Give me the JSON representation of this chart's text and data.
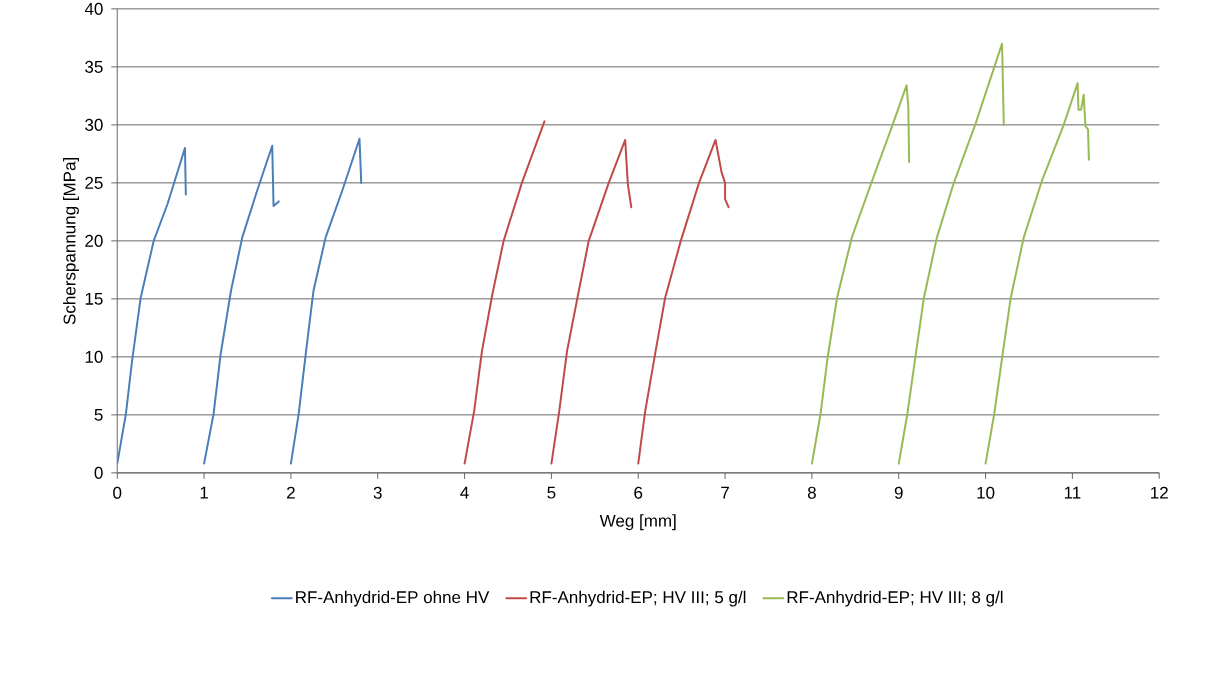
{
  "chart_data": {
    "type": "line",
    "xlabel": "Weg [mm]",
    "ylabel": "Scherspannung [MPa]",
    "xlim": [
      0,
      12
    ],
    "ylim": [
      0,
      40
    ],
    "xticks": [
      0,
      1,
      2,
      3,
      4,
      5,
      6,
      7,
      8,
      9,
      10,
      11,
      12
    ],
    "yticks": [
      0,
      5,
      10,
      15,
      20,
      25,
      30,
      35,
      40
    ],
    "grid": "y",
    "legend": "bottom",
    "series": [
      {
        "name": "RF-Anhydrid-EP ohne HV",
        "color": "#4a7ebb",
        "x": [
          0,
          0.1,
          0.17,
          0.27,
          0.42,
          0.58,
          0.78,
          0.79,
          0.9,
          1.0,
          1.11,
          1.19,
          1.31,
          1.44,
          1.61,
          1.785,
          1.8,
          1.86,
          1.9,
          2.0,
          2.09,
          2.17,
          2.26,
          2.4,
          2.59,
          2.79,
          2.81
        ],
        "values": [
          0.8,
          5.1,
          9.6,
          15.1,
          20,
          23.2,
          28,
          24,
          null,
          0.8,
          5.1,
          10.2,
          15.7,
          20.3,
          24.3,
          28.2,
          23,
          23.4,
          null,
          0.8,
          5.1,
          10.2,
          15.7,
          20.3,
          24.3,
          28.8,
          25
        ]
      },
      {
        "name": "RF-Anhydrid-EP; HV III; 5 g/l",
        "color": "#be4b48",
        "x": [
          4.0,
          4.11,
          4.2,
          4.32,
          4.45,
          4.66,
          4.92,
          4.96,
          5.0,
          5.09,
          5.18,
          5.3,
          5.43,
          5.66,
          5.85,
          5.88,
          5.92,
          5.96,
          6.0,
          6.08,
          6.2,
          6.31,
          6.49,
          6.7,
          6.89,
          6.96,
          7.0,
          7.0,
          7.04
        ],
        "values": [
          0.8,
          5.3,
          10.5,
          15.4,
          20,
          25,
          30.3,
          null,
          0.8,
          5.3,
          10.5,
          15.1,
          20,
          25,
          28.7,
          24.9,
          22.9,
          null,
          0.8,
          5.3,
          10.5,
          15.1,
          20,
          25,
          28.7,
          25.9,
          25,
          23.6,
          22.9
        ]
      },
      {
        "name": "RF-Anhydrid-EP; HV III; 8 g/l",
        "color": "#98b954",
        "x": [
          8.0,
          8.1,
          8.18,
          8.29,
          8.46,
          8.68,
          8.92,
          9.09,
          9.11,
          9.12,
          9.06,
          9.0,
          9.1,
          9.19,
          9.29,
          9.44,
          9.63,
          9.88,
          10.19,
          10.21,
          10.1,
          10.0,
          10.1,
          10.19,
          10.29,
          10.44,
          10.65,
          10.9,
          11.06,
          11.07,
          11.1,
          11.13,
          11.15,
          11.18,
          11.19
        ],
        "values": [
          0.8,
          5.1,
          9.9,
          15.1,
          20.3,
          24.9,
          29.8,
          33.4,
          31.6,
          26.8,
          null,
          0.8,
          5.1,
          9.9,
          15.1,
          20.3,
          24.9,
          30,
          37,
          30,
          null,
          0.8,
          5.1,
          9.9,
          15.1,
          20.3,
          25.2,
          30,
          33.6,
          31.3,
          31.3,
          32.6,
          29.9,
          29.6,
          27
        ]
      }
    ]
  }
}
